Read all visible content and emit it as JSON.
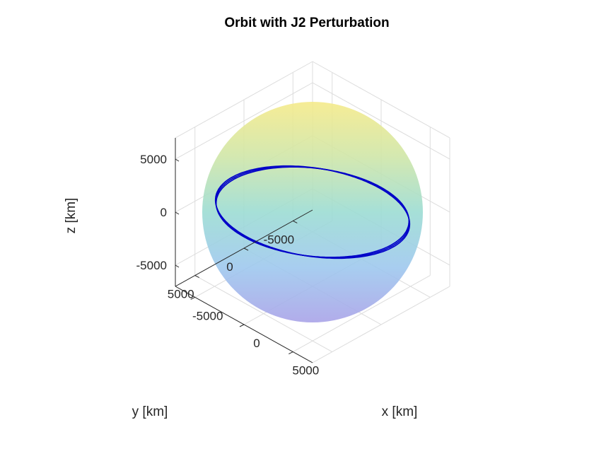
{
  "chart_data": {
    "type": "surface3d",
    "title": "Orbit with J2 Perturbation",
    "xlabel": "x [km]",
    "ylabel": "y [km]",
    "zlabel": "z [km]",
    "xlim": [
      -7000,
      7000
    ],
    "ylim": [
      -7000,
      7000
    ],
    "zlim": [
      -7000,
      7000
    ],
    "x_ticks": [
      {
        "value": -5000,
        "label": "-5000"
      },
      {
        "value": 0,
        "label": "0"
      },
      {
        "value": 5000,
        "label": "5000"
      }
    ],
    "y_ticks": [
      {
        "value": 5000,
        "label": "5000"
      },
      {
        "value": 0,
        "label": "0"
      },
      {
        "value": -5000,
        "label": "-5000"
      }
    ],
    "z_ticks": [
      {
        "value": 5000,
        "label": "5000"
      },
      {
        "value": 0,
        "label": "0"
      },
      {
        "value": -5000,
        "label": "-5000"
      }
    ],
    "grid": true,
    "view": "3d isometric",
    "earth": {
      "radius": 6378,
      "colormap": "parula (yellow top to violet bottom)",
      "transparent": true
    },
    "orbit": {
      "semi_major_axis_approx": 7000,
      "inclination_approx_deg": 65,
      "revolutions_approx": 3,
      "color": "#0000c8"
    }
  }
}
